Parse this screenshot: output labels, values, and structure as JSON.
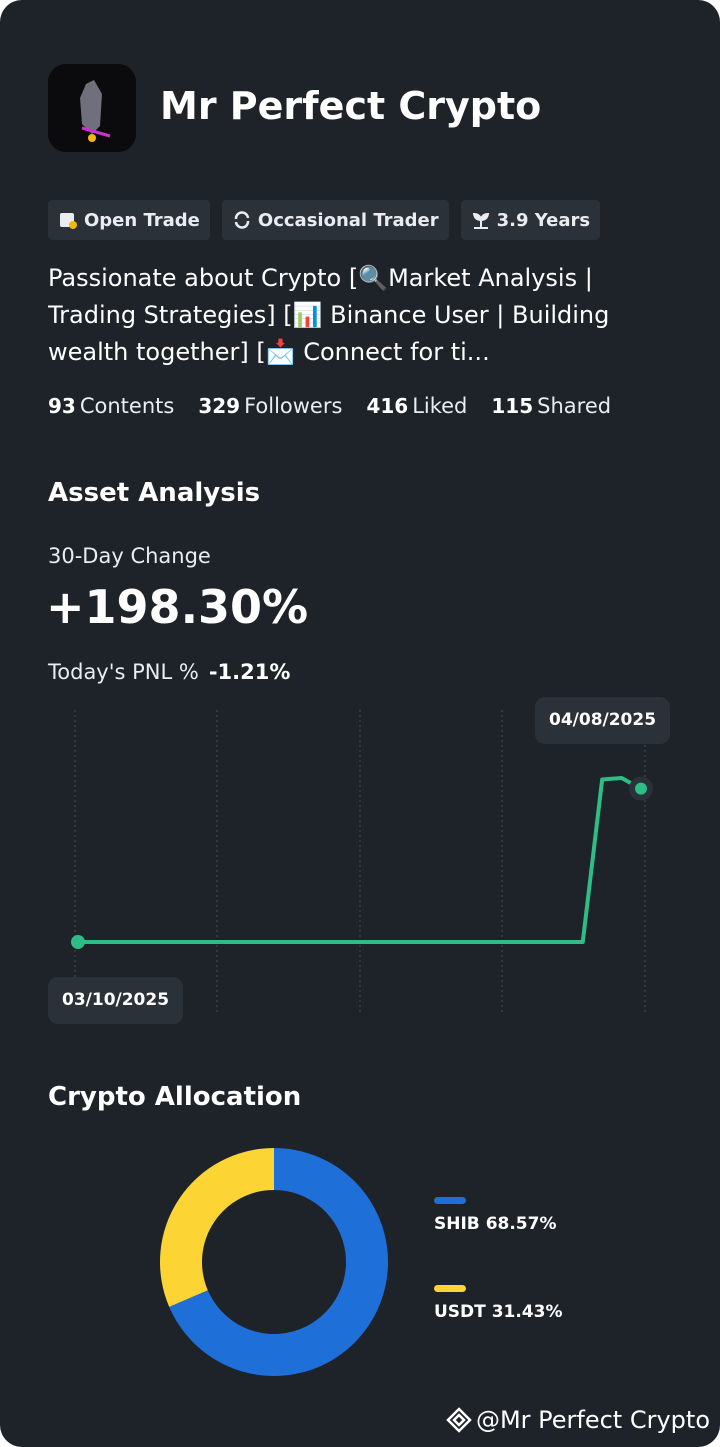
{
  "profile": {
    "name": "Mr Perfect Crypto",
    "tags": [
      "Open Trade",
      "Occasional Trader",
      "3.9 Years"
    ],
    "bio": "Passionate about Crypto [🔍Market Analysis | Trading Strategies]      [📊 Binance User | Building wealth together]      [📩 Connect for ti...",
    "stats": [
      {
        "value": "93",
        "label": "Contents"
      },
      {
        "value": "329",
        "label": "Followers"
      },
      {
        "value": "416",
        "label": "Liked"
      },
      {
        "value": "115",
        "label": "Shared"
      }
    ]
  },
  "asset_analysis": {
    "title": "Asset Analysis",
    "change_label": "30-Day Change",
    "change_value": "+198.30%",
    "pnl_label": "Today's PNL %",
    "pnl_value": "-1.21%"
  },
  "chart_data": [
    {
      "type": "line",
      "x": [
        "03/10/2025",
        null,
        null,
        null,
        null,
        null,
        null,
        null,
        null,
        null,
        null,
        null,
        null,
        null,
        null,
        null,
        null,
        null,
        null,
        null,
        null,
        null,
        null,
        null,
        null,
        null,
        null,
        null,
        null,
        "04/08/2025"
      ],
      "series": [
        {
          "color": "#2ebd85",
          "values": [
            0,
            0,
            0,
            0,
            0,
            0,
            0,
            0,
            0,
            0,
            0,
            0,
            0,
            0,
            0,
            0,
            0,
            0,
            0,
            0,
            0,
            0,
            0,
            0,
            0,
            0,
            0,
            210,
            212,
            198.3
          ]
        }
      ]
    },
    {
      "type": "pie",
      "title": "Crypto Allocation",
      "categories": [
        "SHIB",
        "USDT"
      ],
      "values": [
        68.57,
        31.43
      ],
      "value_labels": [
        "68.57%",
        "31.43%"
      ],
      "colors": [
        "#1f6fd8",
        "#fcd535"
      ]
    }
  ],
  "watermark": "@Mr Perfect Crypto"
}
